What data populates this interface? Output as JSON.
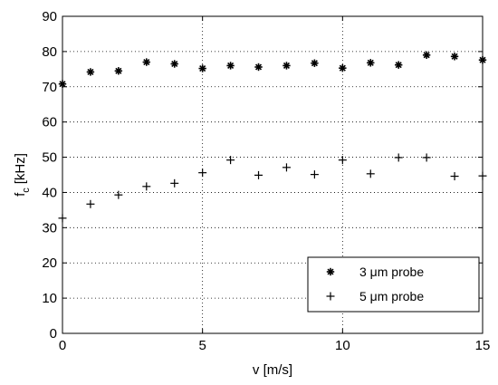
{
  "chart_data": {
    "type": "scatter",
    "title": "",
    "xlabel": "v [m/s]",
    "ylabel_main": "f",
    "ylabel_sub": "c",
    "ylabel_unit": "[kHz]",
    "xlim": [
      0,
      15
    ],
    "ylim": [
      0,
      90
    ],
    "xticks": [
      0,
      5,
      10,
      15
    ],
    "yticks": [
      0,
      10,
      20,
      30,
      40,
      50,
      60,
      70,
      80,
      90
    ],
    "grid": true,
    "legend_position": "bottom-right",
    "series": [
      {
        "name": "3 μm probe",
        "marker": "asterisk",
        "color": "#000000",
        "x": [
          0,
          1,
          2,
          3,
          4,
          5,
          6,
          7,
          8,
          9,
          10,
          11,
          12,
          13,
          14,
          15
        ],
        "y": [
          70.8,
          74.2,
          74.5,
          77.0,
          76.5,
          75.2,
          76.0,
          75.6,
          76.0,
          76.7,
          75.3,
          76.8,
          76.2,
          79.0,
          78.6,
          77.6
        ]
      },
      {
        "name": "5 μm probe",
        "marker": "plus",
        "color": "#000000",
        "x": [
          0,
          1,
          2,
          3,
          4,
          5,
          6,
          7,
          8,
          9,
          10,
          11,
          12,
          13,
          14,
          15
        ],
        "y": [
          32.7,
          36.7,
          39.3,
          41.7,
          42.6,
          45.6,
          49.2,
          44.9,
          47.1,
          45.1,
          49.2,
          45.3,
          49.9,
          49.9,
          44.6,
          44.7
        ]
      }
    ]
  }
}
